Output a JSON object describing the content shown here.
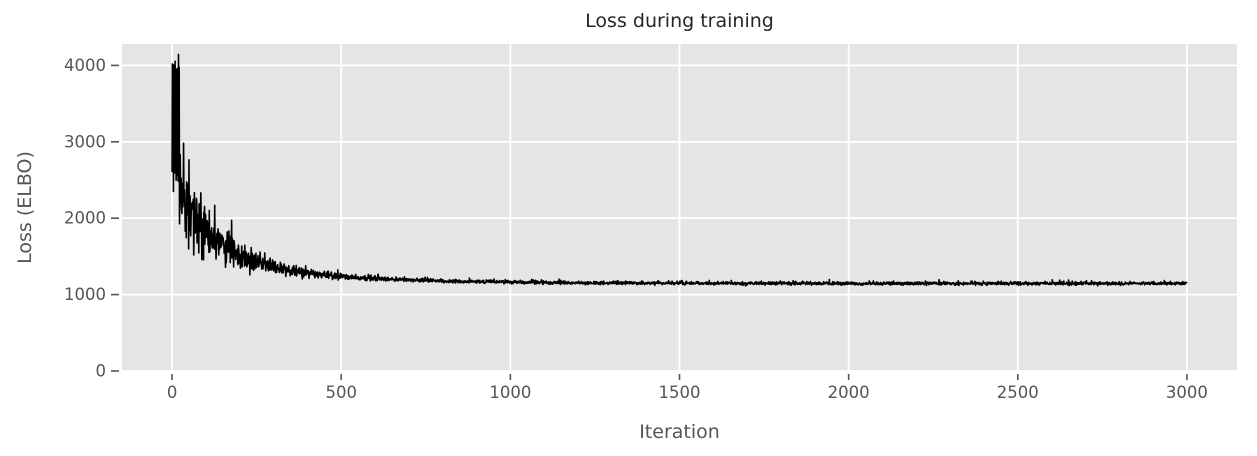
{
  "style": {
    "figure_bg": "#ffffff",
    "panel_bg": "#e5e5e5",
    "grid_color": "#ffffff",
    "line_color": "#000000",
    "tick_color": "#555555",
    "label_color": "#555555",
    "title_color": "#262626"
  },
  "chart_data": {
    "type": "line",
    "title": "Loss during training",
    "xlabel": "Iteration",
    "ylabel": "Loss (ELBO)",
    "legend": "none",
    "grid": "major gridlines only, white on gray panel (ggplot style)",
    "x_ticks": [
      0,
      500,
      1000,
      1500,
      2000,
      2500,
      3000
    ],
    "y_ticks": [
      0,
      1000,
      2000,
      3000,
      4000
    ],
    "xlim": [
      -148,
      3148
    ],
    "ylim": [
      0,
      4280
    ],
    "series": [
      {
        "name": "ELBO loss",
        "color": "#000000",
        "n_points": 3000,
        "start_value": 2600,
        "peak_value": 4150,
        "final_value": 1145,
        "summary_x": [
          0,
          2,
          5,
          8,
          12,
          16,
          20,
          25,
          30,
          40,
          60,
          80,
          112,
          150,
          200,
          250,
          300,
          400,
          500,
          700,
          1000,
          1500,
          2000,
          2500,
          3000
        ],
        "summary_y": [
          2600,
          4100,
          2700,
          4150,
          2750,
          3950,
          2650,
          2400,
          2320,
          2250,
          2080,
          1950,
          1790,
          1650,
          1510,
          1420,
          1360,
          1280,
          1240,
          1195,
          1165,
          1150,
          1147,
          1146,
          1145
        ]
      }
    ],
    "render_model": {
      "seed": 11,
      "n": 3000,
      "plateau": 1145,
      "exp_terms": [
        {
          "a": 1100,
          "tau": 100
        },
        {
          "a": 400,
          "tau": 320
        }
      ],
      "noise": {
        "base": 15,
        "a": 400,
        "tau": 150,
        "scale": 0.7,
        "bump_p": 0.08,
        "bump_scale": 2.0
      },
      "spikes": {
        "until": 22,
        "lo": 2550,
        "lo_sd": 150,
        "hi": 4020,
        "hi_sd": 90
      },
      "clamp": [
        1085,
        4155
      ]
    }
  }
}
